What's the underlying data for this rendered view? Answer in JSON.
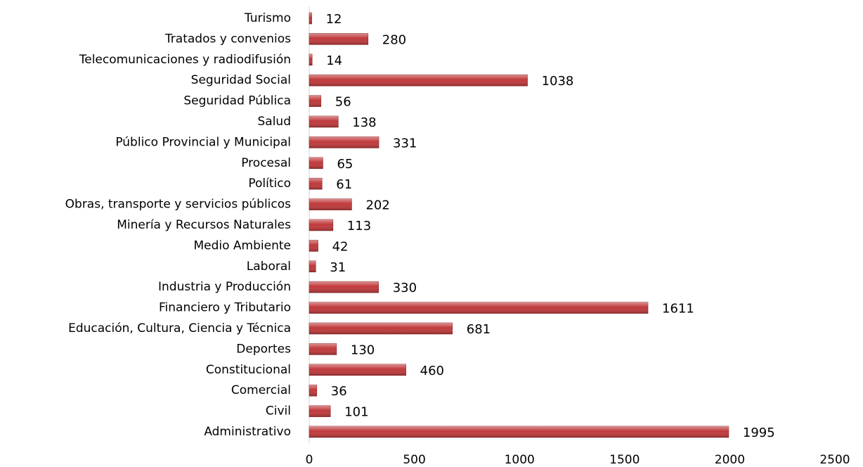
{
  "chart_data": {
    "type": "bar",
    "orientation": "horizontal",
    "categories": [
      "Turismo",
      "Tratados y convenios",
      "Telecomunicaciones y radiodifusión",
      "Seguridad Social",
      "Seguridad Pública",
      "Salud",
      "Público Provincial y Municipal",
      "Procesal",
      "Político",
      "Obras, transporte y servicios públicos",
      "Minería y Recursos Naturales",
      "Medio Ambiente",
      "Laboral",
      "Industria y Producción",
      "Financiero y Tributario",
      "Educación, Cultura, Ciencia y Técnica",
      "Deportes",
      "Constitucional",
      "Comercial",
      "Civil",
      "Administrativo"
    ],
    "values": [
      12,
      280,
      14,
      1038,
      56,
      138,
      331,
      65,
      61,
      202,
      113,
      42,
      31,
      330,
      1611,
      681,
      130,
      460,
      36,
      101,
      1995
    ],
    "color": "#c0393b",
    "xlim": [
      0,
      2500
    ],
    "xticks": [
      0,
      500,
      1000,
      1500,
      2000,
      2500
    ],
    "grid": false
  }
}
